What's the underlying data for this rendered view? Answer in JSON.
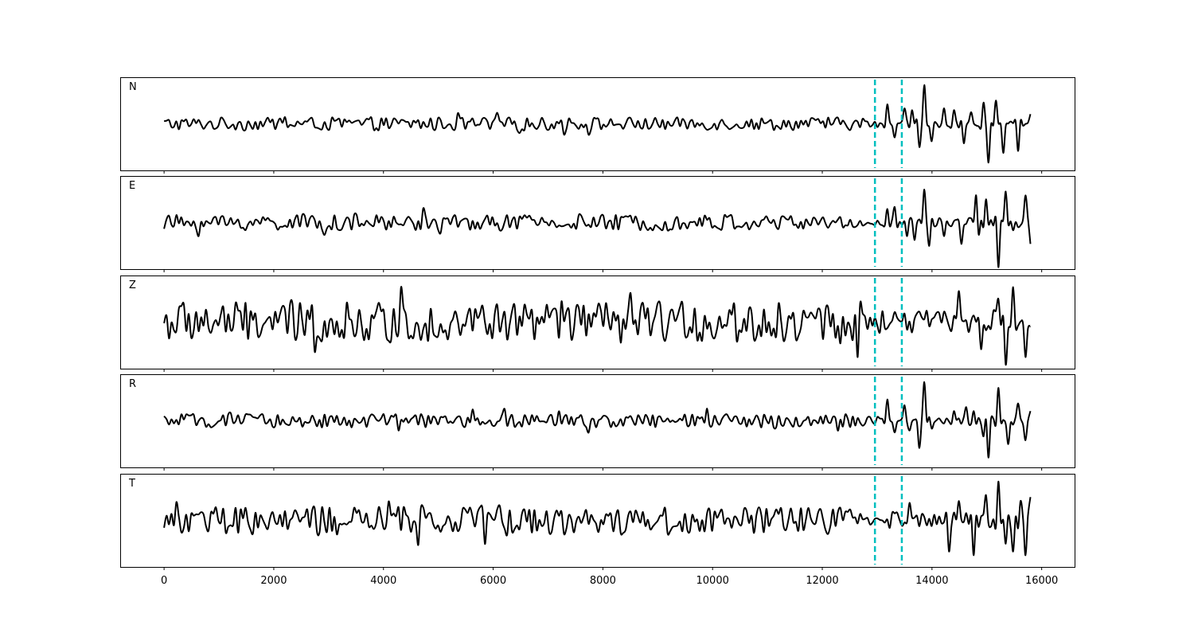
{
  "chart_data": {
    "type": "line",
    "title": "",
    "xlabel": "",
    "ylabel": "",
    "xlim": [
      -800,
      16600
    ],
    "x_ticks": [
      0,
      2000,
      4000,
      6000,
      8000,
      10000,
      12000,
      14000,
      16000
    ],
    "x_tick_labels": [
      "0",
      "2000",
      "4000",
      "6000",
      "8000",
      "10000",
      "12000",
      "14000",
      "16000"
    ],
    "markers": [
      12960,
      13450
    ],
    "marker_color": "#00BFBF",
    "trace_color": "#000000",
    "x_end": 15800,
    "panels": [
      {
        "label": "N",
        "ylim": [
          -1.2,
          1.2
        ],
        "noise": 0.16,
        "events": [
          {
            "x": 13190,
            "y": 0.5
          },
          {
            "x": 13320,
            "y": -0.35
          },
          {
            "x": 13500,
            "y": 0.4
          },
          {
            "x": 13650,
            "y": 0.35
          },
          {
            "x": 13780,
            "y": -0.6
          },
          {
            "x": 13880,
            "y": 1.0
          },
          {
            "x": 13980,
            "y": -0.45
          },
          {
            "x": 14220,
            "y": 0.4
          },
          {
            "x": 14380,
            "y": 0.35
          },
          {
            "x": 14560,
            "y": -0.5
          },
          {
            "x": 14720,
            "y": 0.3
          },
          {
            "x": 14930,
            "y": 0.55
          },
          {
            "x": 15010,
            "y": -1.0
          },
          {
            "x": 15180,
            "y": 0.6
          },
          {
            "x": 15310,
            "y": -0.75
          },
          {
            "x": 15560,
            "y": -0.7
          },
          {
            "x": 15780,
            "y": 0.25
          }
        ]
      },
      {
        "label": "E",
        "ylim": [
          -1.2,
          1.2
        ],
        "noise": 0.2,
        "events": [
          {
            "x": 13170,
            "y": 0.35
          },
          {
            "x": 13330,
            "y": 0.4
          },
          {
            "x": 13550,
            "y": -0.35
          },
          {
            "x": 13700,
            "y": -0.45
          },
          {
            "x": 13840,
            "y": 0.85
          },
          {
            "x": 13960,
            "y": -0.6
          },
          {
            "x": 14200,
            "y": -0.35
          },
          {
            "x": 14520,
            "y": -0.55
          },
          {
            "x": 14810,
            "y": 0.7
          },
          {
            "x": 14870,
            "y": -0.3
          },
          {
            "x": 15000,
            "y": 0.6
          },
          {
            "x": 15200,
            "y": -1.15
          },
          {
            "x": 15350,
            "y": 0.8
          },
          {
            "x": 15500,
            "y": -0.2
          },
          {
            "x": 15720,
            "y": 0.7
          },
          {
            "x": 15790,
            "y": -0.55
          }
        ]
      },
      {
        "label": "Z",
        "ylim": [
          -1.2,
          1.2
        ],
        "noise": 0.5,
        "events": [
          {
            "x": 14480,
            "y": 0.8
          },
          {
            "x": 14900,
            "y": -0.7
          },
          {
            "x": 15220,
            "y": 0.6
          },
          {
            "x": 15330,
            "y": -1.1
          },
          {
            "x": 15500,
            "y": 0.9
          },
          {
            "x": 15700,
            "y": -0.9
          }
        ]
      },
      {
        "label": "R",
        "ylim": [
          -1.2,
          1.2
        ],
        "noise": 0.17,
        "events": [
          {
            "x": 13190,
            "y": 0.55
          },
          {
            "x": 13330,
            "y": -0.3
          },
          {
            "x": 13480,
            "y": 0.4
          },
          {
            "x": 13570,
            "y": -0.25
          },
          {
            "x": 13770,
            "y": -0.7
          },
          {
            "x": 13880,
            "y": 1.0
          },
          {
            "x": 14000,
            "y": -0.2
          },
          {
            "x": 14380,
            "y": 0.25
          },
          {
            "x": 14630,
            "y": 0.35
          },
          {
            "x": 14780,
            "y": 0.25
          },
          {
            "x": 14930,
            "y": -0.4
          },
          {
            "x": 15010,
            "y": -0.95
          },
          {
            "x": 15200,
            "y": 0.85
          },
          {
            "x": 15400,
            "y": -0.6
          },
          {
            "x": 15550,
            "y": 0.45
          },
          {
            "x": 15700,
            "y": -0.5
          },
          {
            "x": 15800,
            "y": 0.25
          }
        ]
      },
      {
        "label": "T",
        "ylim": [
          -1.2,
          1.2
        ],
        "noise": 0.35,
        "events": [
          {
            "x": 13600,
            "y": 0.45
          },
          {
            "x": 14300,
            "y": -0.8
          },
          {
            "x": 14500,
            "y": 0.5
          },
          {
            "x": 14760,
            "y": -0.9
          },
          {
            "x": 15000,
            "y": 0.65
          },
          {
            "x": 15230,
            "y": 1.0
          },
          {
            "x": 15330,
            "y": -0.6
          },
          {
            "x": 15500,
            "y": -0.8
          },
          {
            "x": 15620,
            "y": 0.5
          },
          {
            "x": 15700,
            "y": -0.9
          },
          {
            "x": 15800,
            "y": 0.6
          }
        ]
      }
    ]
  }
}
